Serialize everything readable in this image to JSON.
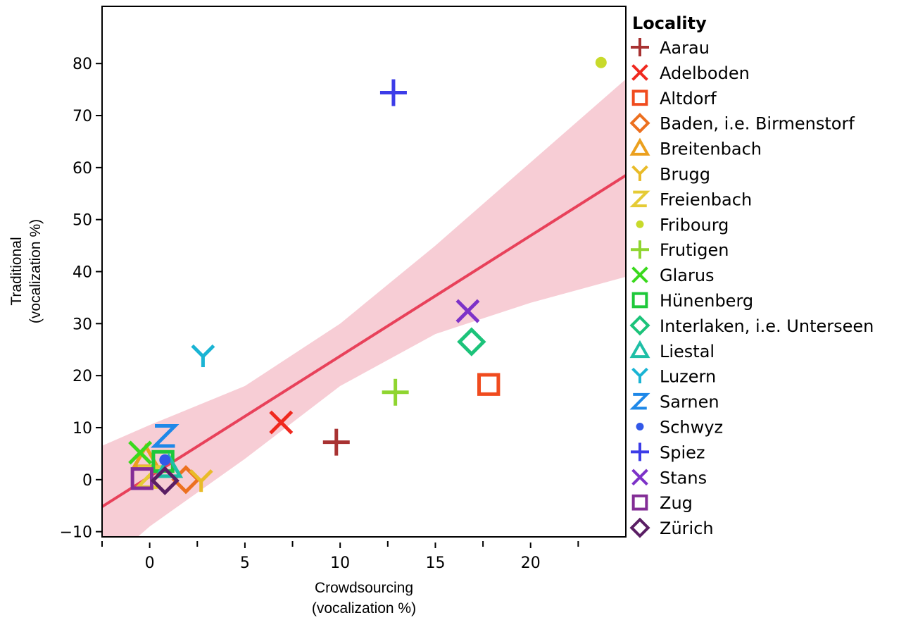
{
  "chart_data": {
    "type": "scatter",
    "xlabel": [
      "Crowdsourcing",
      "(vocalization %)"
    ],
    "ylabel": [
      "Traditional",
      "(vocalization %)"
    ],
    "xlim": [
      -2.5,
      25
    ],
    "ylim": [
      -11,
      91
    ],
    "x_ticks": [
      0,
      5,
      10,
      15,
      20
    ],
    "x_minor_ticks": [
      -2.5,
      2.5,
      7.5,
      12.5,
      17.5,
      22.5
    ],
    "y_ticks": [
      -10,
      0,
      10,
      20,
      30,
      40,
      50,
      60,
      70,
      80
    ],
    "legend_title": "Locality",
    "legend_placement": "right, outside plot",
    "grid": false,
    "regression_line": {
      "color": "#e8415a",
      "x": [
        -2.5,
        25
      ],
      "y": [
        -5.2,
        58.5
      ]
    },
    "confidence_band": {
      "color": "#f7cdd5",
      "x": [
        -2.5,
        0,
        5,
        10,
        15,
        20,
        25
      ],
      "upper": [
        6.5,
        10.5,
        18,
        30,
        45,
        61,
        77
      ],
      "lower": [
        -17,
        -9,
        4,
        18,
        28,
        34,
        39
      ]
    },
    "series": [
      {
        "name": "Aarau",
        "marker": "plus",
        "color": "#a83232",
        "x": 9.8,
        "y": 7.2
      },
      {
        "name": "Adelboden",
        "marker": "x",
        "color": "#f0281e",
        "x": 6.9,
        "y": 11
      },
      {
        "name": "Altdorf",
        "marker": "square",
        "color": "#f04b1e",
        "x": 17.8,
        "y": 18.3
      },
      {
        "name": "Baden, i.e. Birmenstorf",
        "marker": "diamond",
        "color": "#ec7020",
        "x": 1.9,
        "y": 0
      },
      {
        "name": "Breitenbach",
        "marker": "triangle",
        "color": "#eba01e",
        "x": -0.2,
        "y": 4.2
      },
      {
        "name": "Brugg",
        "marker": "Y",
        "color": "#e9bb28",
        "x": 2.7,
        "y": -0.3
      },
      {
        "name": "Freienbach",
        "marker": "Z",
        "color": "#e5cb35",
        "x": -0.1,
        "y": 0.5
      },
      {
        "name": "Fribourg",
        "marker": "dot",
        "color": "#c8da2b",
        "x": 23.7,
        "y": 80.2
      },
      {
        "name": "Frutigen",
        "marker": "plus",
        "color": "#8fd530",
        "x": 12.9,
        "y": 16.8
      },
      {
        "name": "Glarus",
        "marker": "x",
        "color": "#3ad91d",
        "x": -0.5,
        "y": 5.2
      },
      {
        "name": "Hünenberg",
        "marker": "square",
        "color": "#1ec83a",
        "x": 0.7,
        "y": 3.5
      },
      {
        "name": "Interlaken, i.e. Unterseen",
        "marker": "diamond",
        "color": "#1cc37a",
        "x": 16.9,
        "y": 26.5
      },
      {
        "name": "Liestal",
        "marker": "triangle",
        "color": "#1ebfa6",
        "x": 1.0,
        "y": 2.3
      },
      {
        "name": "Luzern",
        "marker": "Y",
        "color": "#1ab4d4",
        "x": 2.8,
        "y": 23.7
      },
      {
        "name": "Sarnen",
        "marker": "Z",
        "color": "#1e88e8",
        "x": 0.8,
        "y": 8.4
      },
      {
        "name": "Schwyz",
        "marker": "dot",
        "color": "#3258e8",
        "x": 0.8,
        "y": 3.8
      },
      {
        "name": "Spiez",
        "marker": "plus",
        "color": "#3c3ce8",
        "x": 12.8,
        "y": 74.4
      },
      {
        "name": "Stans",
        "marker": "x",
        "color": "#7d32c8",
        "x": 16.7,
        "y": 32.4
      },
      {
        "name": "Zug",
        "marker": "square",
        "color": "#832d96",
        "x": -0.4,
        "y": 0.2
      },
      {
        "name": "Zürich",
        "marker": "diamond",
        "color": "#5a1e64",
        "x": 0.8,
        "y": -0.2
      }
    ]
  }
}
